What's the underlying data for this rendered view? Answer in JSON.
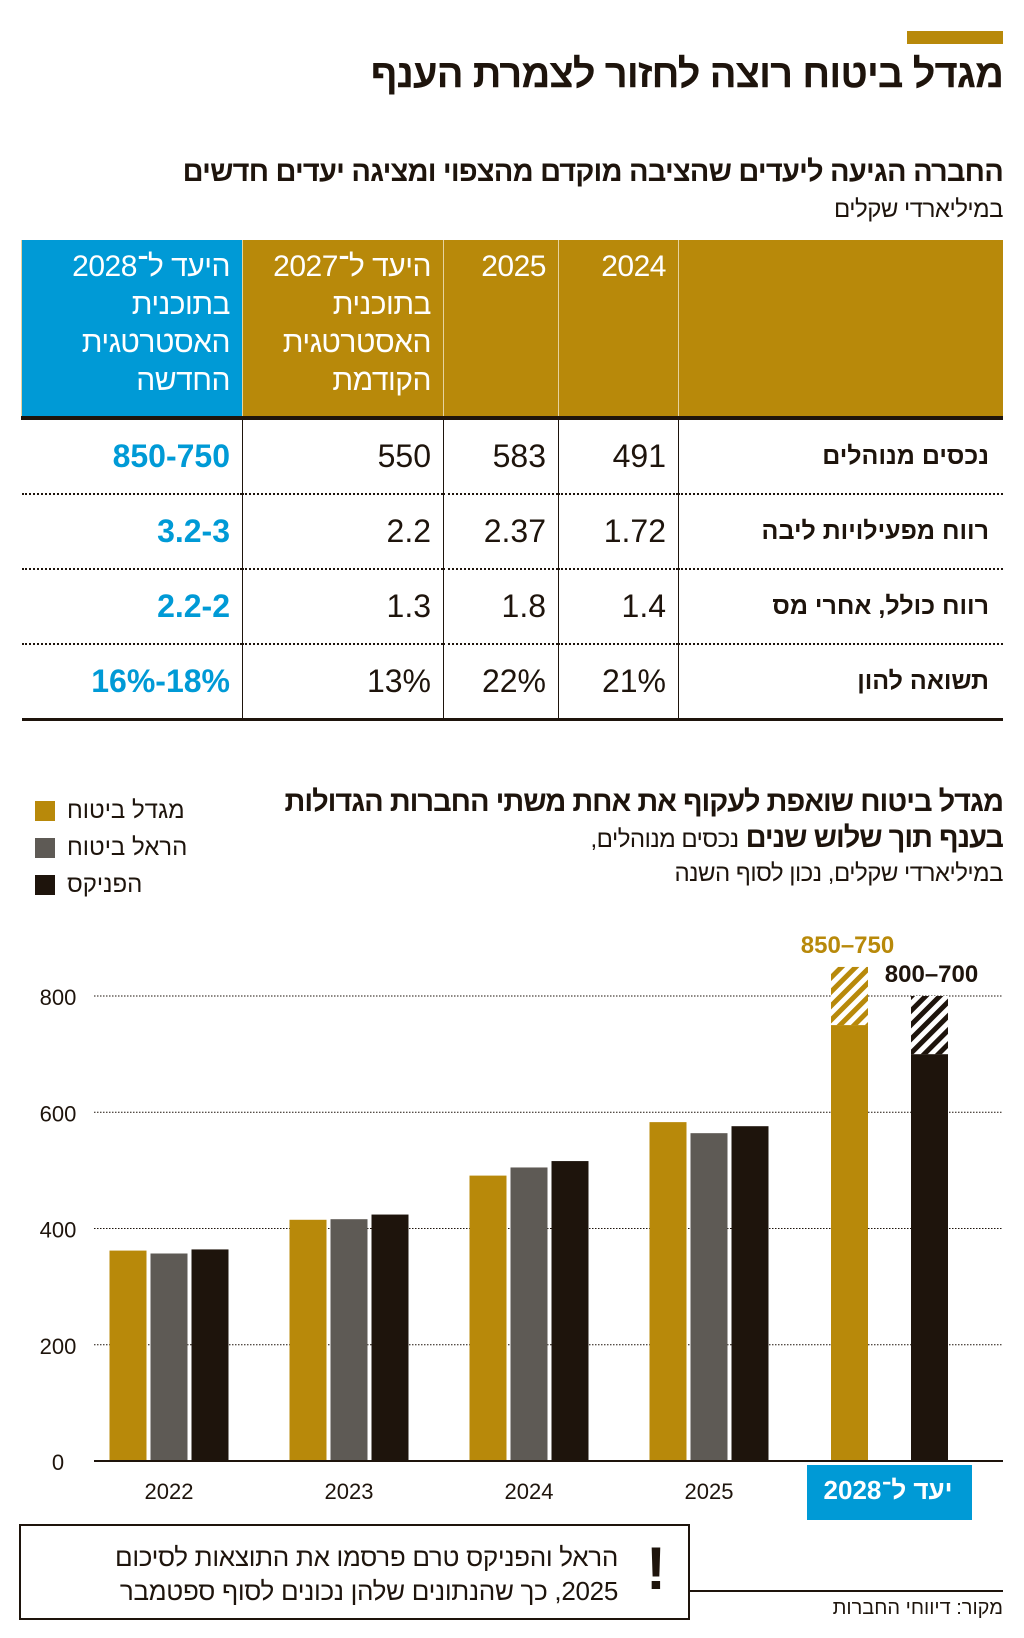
{
  "title": "מגדל ביטוח רוצה לחזור לצמרת הענף",
  "table": {
    "subtitle": "החברה הגיעה ליעדים שהציבה מוקדם מהצפוי ומציגה יעדים חדשים",
    "unit": "במיליארדי שקלים",
    "headers": [
      "",
      "2024",
      "2025",
      "היעד ל־2027 בתוכנית האסטרטגית הקודמת",
      "היעד ל־2028 בתוכנית האסטרטגית החדשה"
    ],
    "rows": [
      {
        "label": "נכסים מנוהלים",
        "v2024": "491",
        "v2025": "583",
        "t2027": "550",
        "t2028": "850-750"
      },
      {
        "label": "רווח מפעילויות ליבה",
        "v2024": "1.72",
        "v2025": "2.37",
        "t2027": "2.2",
        "t2028": "3.2-3"
      },
      {
        "label": "רווח כולל, אחרי מס",
        "v2024": "1.4",
        "v2025": "1.8",
        "t2027": "1.3",
        "t2028": "2.2-2"
      },
      {
        "label": "תשואה להון",
        "v2024": "21%",
        "v2025": "22%",
        "t2027": "13%",
        "t2028": "18%-16%"
      }
    ]
  },
  "chart_data": {
    "type": "bar",
    "title": "מגדל ביטוח שואפת לעקוף את אחת משתי החברות הגדולות בענף תוך שלוש שנים",
    "subtitle": "נכסים מנוהלים,",
    "unit": "במיליארדי שקלים, נכון לסוף השנה",
    "categories": [
      "2022",
      "2023",
      "2024",
      "2025",
      "יעד ל־2028"
    ],
    "ylim": [
      0,
      800
    ],
    "yticks": [
      0,
      200,
      400,
      600,
      800
    ],
    "grid": true,
    "legend_position": "top-left",
    "series": [
      {
        "name": "מגדל ביטוח",
        "color": "#b8890a",
        "values": [
          362,
          415,
          491,
          583,
          null
        ],
        "target_range": [
          750,
          850
        ],
        "target_label": "850–750"
      },
      {
        "name": "הראל ביטוח",
        "color": "#5e5a55",
        "values": [
          357,
          416,
          505,
          564,
          null
        ]
      },
      {
        "name": "הפניקס",
        "color": "#1e140c",
        "values": [
          364,
          424,
          516,
          576,
          null
        ],
        "target_range": [
          700,
          800
        ],
        "target_label": "800–700"
      }
    ],
    "highlight_color": "#009ad6"
  },
  "note": {
    "line1": "הראל והפניקס טרם פרסמו את התוצאות לסיכום",
    "line2": "2025, כך שהנתונים שלהן נכונים לסוף ספטמבר",
    "mark": "!"
  },
  "source": "מקור: דיווחי החברות"
}
